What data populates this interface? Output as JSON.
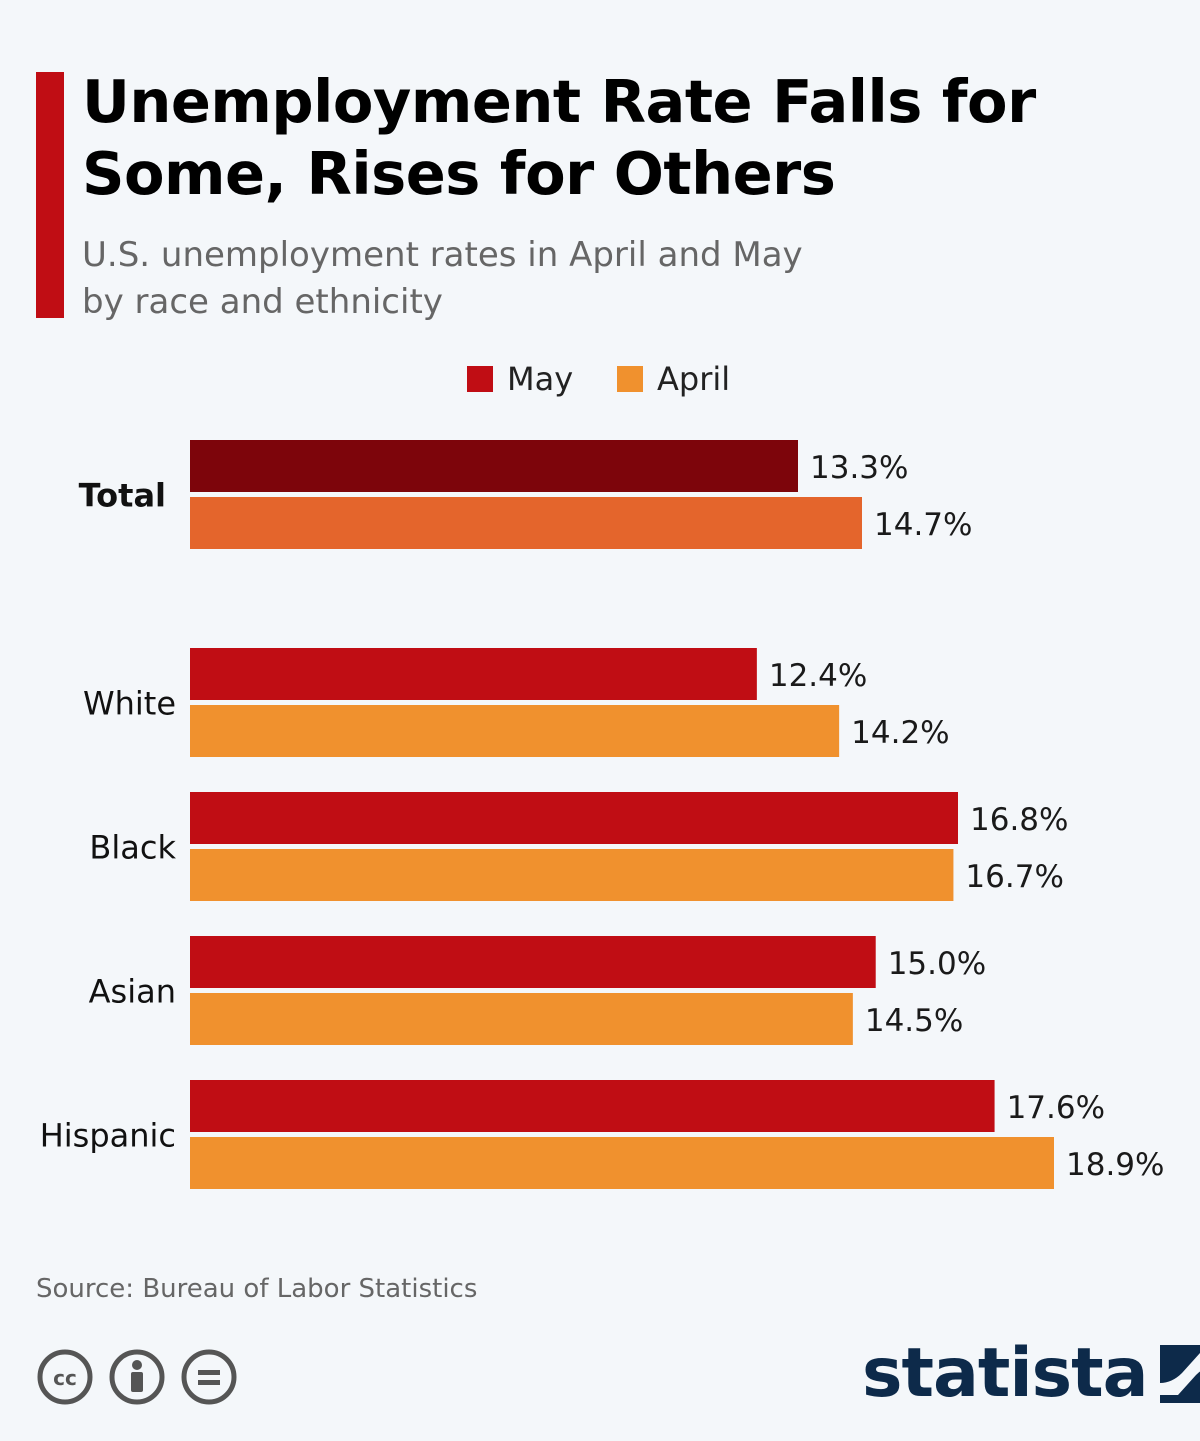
{
  "header": {
    "title": "Unemployment Rate Falls for Some, Rises for Others",
    "subtitle_line1": "U.S. unemployment rates in April and May",
    "subtitle_line2": "by race and ethnicity"
  },
  "legend": {
    "items": [
      {
        "label": "May",
        "color": "#c00d14"
      },
      {
        "label": "April",
        "color": "#f0912e"
      }
    ]
  },
  "chart_data": {
    "type": "bar",
    "orientation": "horizontal",
    "categories": [
      "Total",
      "White",
      "Black",
      "Asian",
      "Hispanic"
    ],
    "series": [
      {
        "name": "May",
        "values": [
          13.3,
          12.4,
          16.8,
          15.0,
          17.6
        ],
        "color": "#c00d14",
        "highlight_color": "#7d050b"
      },
      {
        "name": "April",
        "values": [
          14.7,
          14.2,
          16.7,
          14.5,
          18.9
        ],
        "color": "#f0912e",
        "highlight_color": "#e4652c"
      }
    ],
    "value_labels": {
      "May": [
        "13.3%",
        "12.4%",
        "16.8%",
        "15.0%",
        "17.6%"
      ],
      "April": [
        "14.7%",
        "14.2%",
        "16.7%",
        "14.5%",
        "18.9%"
      ]
    },
    "highlighted_category": "Total",
    "xlim": [
      0,
      18.9
    ],
    "legend_position": "top-center",
    "grid": false
  },
  "footer": {
    "source": "Source: Bureau of Labor Statistics",
    "brand": "statista",
    "license_icons": [
      "cc-icon",
      "attribution-icon",
      "no-derivatives-icon"
    ]
  }
}
